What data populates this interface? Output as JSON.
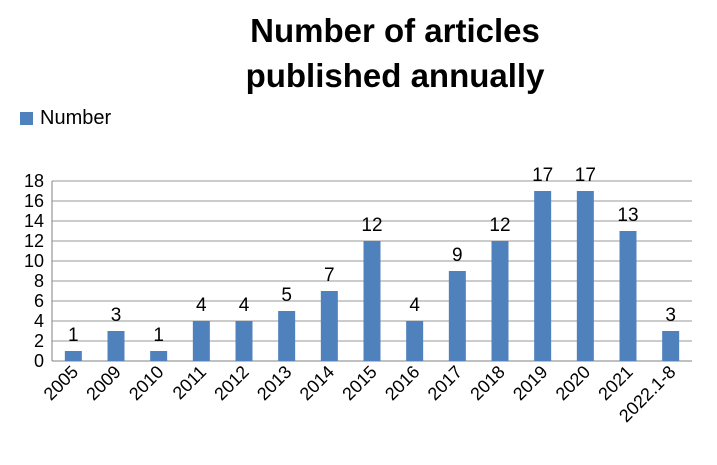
{
  "chart_data": {
    "type": "bar",
    "title_lines": [
      "Number of articles",
      "published annually"
    ],
    "series": [
      {
        "name": "Number",
        "color": "#4f81bd",
        "values": [
          1,
          3,
          1,
          4,
          4,
          5,
          7,
          12,
          4,
          9,
          12,
          17,
          17,
          13,
          3
        ]
      }
    ],
    "categories": [
      "2005",
      "2009",
      "2010",
      "2011",
      "2012",
      "2013",
      "2014",
      "2015",
      "2016",
      "2017",
      "2018",
      "2019",
      "2020",
      "2021",
      "2022.1-8"
    ],
    "ylim": [
      0,
      18
    ],
    "yticks": [
      "0",
      "2",
      "4",
      "6",
      "8",
      "10",
      "12",
      "14",
      "16",
      "18"
    ],
    "grid": true,
    "legend_position": "top-left",
    "data_labels": true
  }
}
